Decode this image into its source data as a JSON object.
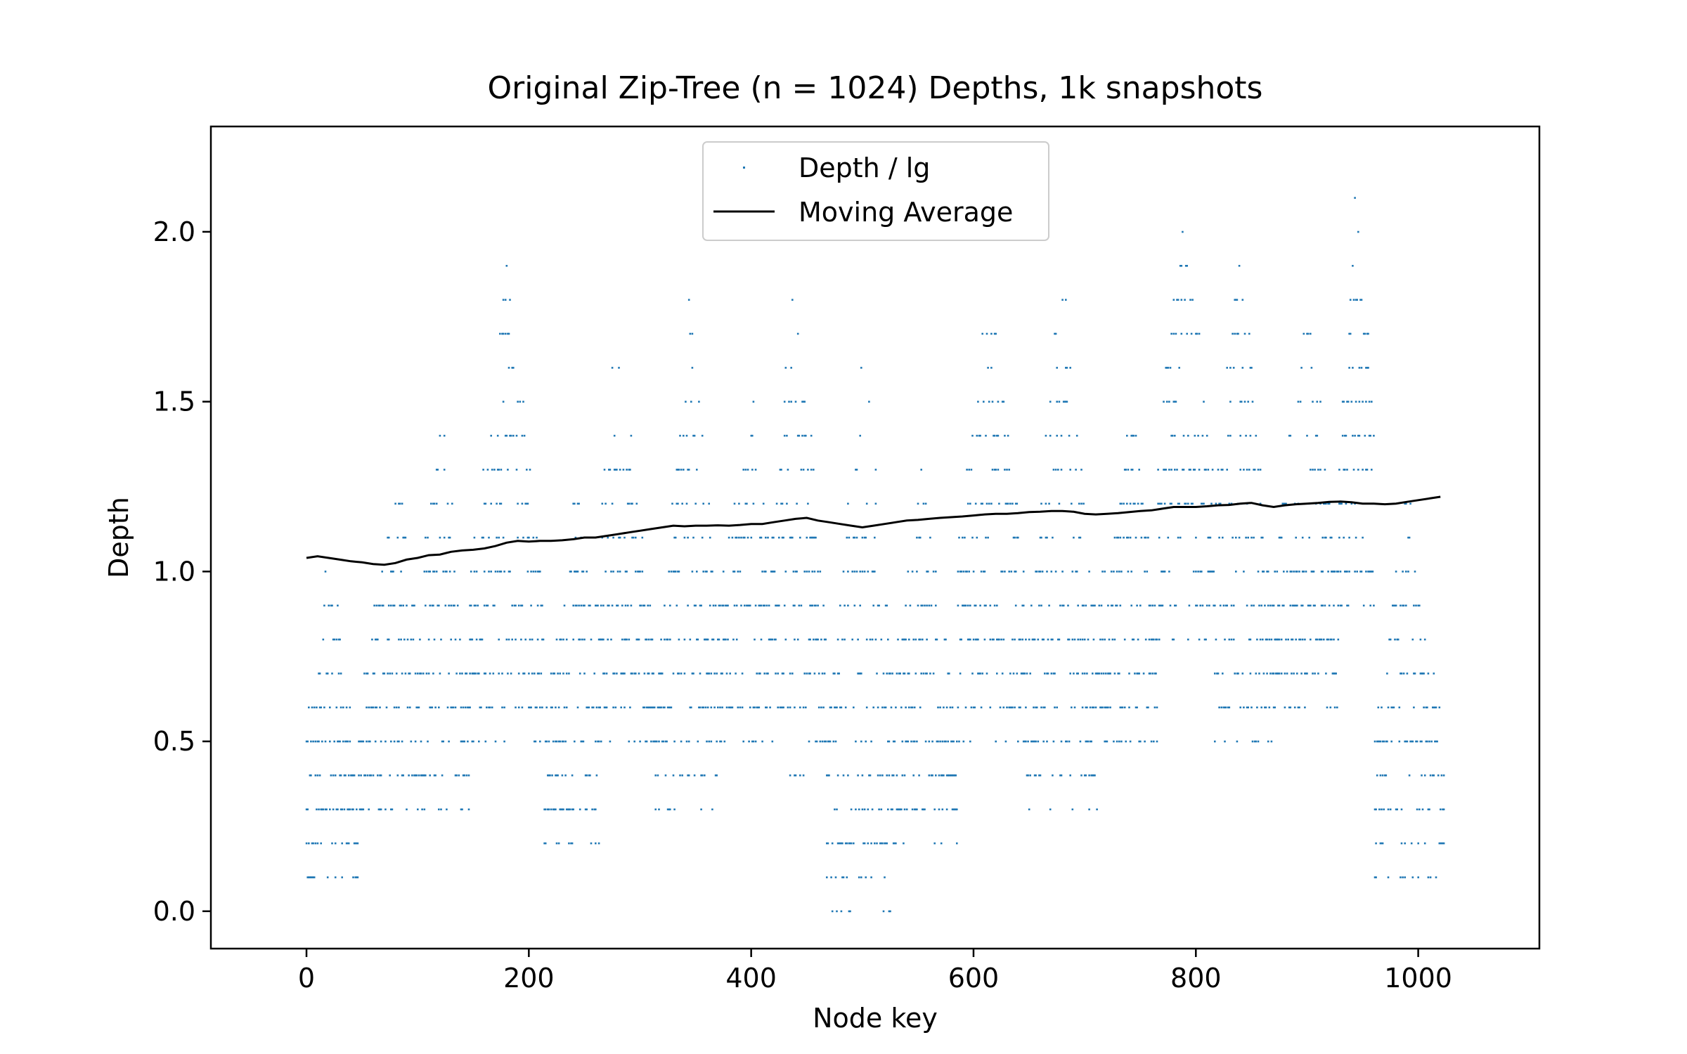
{
  "chart_data": {
    "type": "scatter",
    "title": "Original Zip-Tree (n = 1024) Depths, 1k snapshots",
    "xlabel": "Node key",
    "ylabel": "Depth",
    "xlim": [
      -86,
      1109
    ],
    "ylim": [
      -0.11,
      2.31
    ],
    "xticks": [
      0,
      200,
      400,
      600,
      800,
      1000
    ],
    "xtick_labels": [
      "0",
      "200",
      "400",
      "600",
      "800",
      "1000"
    ],
    "yticks": [
      0.0,
      0.5,
      1.0,
      1.5,
      2.0
    ],
    "ytick_labels": [
      "0.0",
      "0.5",
      "1.0",
      "1.5",
      "2.0"
    ],
    "grid": false,
    "legend_position": "upper center",
    "colors": {
      "points": "#1f77b4",
      "moving_average": "#000000"
    },
    "series": [
      {
        "name": "Depth / lg",
        "kind": "scatter",
        "depth_levels": [
          0.0,
          0.1,
          0.2,
          0.3,
          0.4,
          0.5,
          0.6,
          0.7,
          0.8,
          0.9,
          1.0,
          1.1,
          1.2,
          1.3,
          1.4,
          1.5,
          1.6,
          1.7,
          1.8,
          1.9,
          2.0,
          2.1,
          2.2
        ],
        "clusters": [
          {
            "center": 20,
            "spread": 22,
            "peak": 1.1,
            "low": 0.1
          },
          {
            "center": 80,
            "spread": 28,
            "peak": 1.3,
            "low": 0.3
          },
          {
            "center": 120,
            "spread": 24,
            "peak": 1.5,
            "low": 0.3
          },
          {
            "center": 180,
            "spread": 30,
            "peak": 2.0,
            "low": 0.5
          },
          {
            "center": 245,
            "spread": 28,
            "peak": 1.3,
            "low": 0.2
          },
          {
            "center": 280,
            "spread": 26,
            "peak": 1.7,
            "low": 0.5
          },
          {
            "center": 345,
            "spread": 24,
            "peak": 1.9,
            "low": 0.3
          },
          {
            "center": 400,
            "spread": 30,
            "peak": 1.5,
            "low": 0.5
          },
          {
            "center": 440,
            "spread": 26,
            "peak": 1.9,
            "low": 0.4
          },
          {
            "center": 500,
            "spread": 30,
            "peak": 1.7,
            "low": 0.0
          },
          {
            "center": 555,
            "spread": 30,
            "peak": 1.3,
            "low": 0.2
          },
          {
            "center": 615,
            "spread": 30,
            "peak": 1.9,
            "low": 0.5
          },
          {
            "center": 680,
            "spread": 30,
            "peak": 1.9,
            "low": 0.3
          },
          {
            "center": 740,
            "spread": 28,
            "peak": 1.5,
            "low": 0.5
          },
          {
            "center": 790,
            "spread": 26,
            "peak": 2.1,
            "low": 0.8
          },
          {
            "center": 840,
            "spread": 26,
            "peak": 2.0,
            "low": 0.5
          },
          {
            "center": 900,
            "spread": 28,
            "peak": 1.8,
            "low": 0.6
          },
          {
            "center": 945,
            "spread": 16,
            "peak": 2.2,
            "low": 0.9
          },
          {
            "center": 990,
            "spread": 30,
            "peak": 1.3,
            "low": 0.1
          }
        ],
        "key_range": [
          0,
          1023
        ]
      },
      {
        "name": "Moving Average",
        "kind": "line",
        "x": [
          0,
          10,
          20,
          30,
          40,
          50,
          60,
          70,
          80,
          90,
          100,
          110,
          120,
          130,
          140,
          150,
          160,
          170,
          180,
          190,
          200,
          210,
          220,
          230,
          240,
          250,
          260,
          270,
          280,
          290,
          300,
          310,
          320,
          330,
          340,
          350,
          360,
          370,
          380,
          390,
          400,
          410,
          420,
          430,
          440,
          450,
          460,
          470,
          480,
          490,
          500,
          510,
          520,
          530,
          540,
          550,
          560,
          570,
          580,
          590,
          600,
          610,
          620,
          630,
          640,
          650,
          660,
          670,
          680,
          690,
          700,
          710,
          720,
          730,
          740,
          750,
          760,
          770,
          780,
          790,
          800,
          810,
          820,
          830,
          840,
          850,
          860,
          870,
          880,
          890,
          900,
          910,
          920,
          930,
          940,
          950,
          960,
          970,
          980,
          990,
          1000,
          1010,
          1020
        ],
        "y": [
          1.04,
          1.045,
          1.04,
          1.035,
          1.03,
          1.027,
          1.022,
          1.02,
          1.025,
          1.035,
          1.04,
          1.048,
          1.05,
          1.058,
          1.062,
          1.064,
          1.068,
          1.075,
          1.085,
          1.09,
          1.088,
          1.09,
          1.09,
          1.092,
          1.095,
          1.1,
          1.1,
          1.105,
          1.11,
          1.115,
          1.12,
          1.125,
          1.13,
          1.135,
          1.133,
          1.135,
          1.135,
          1.136,
          1.135,
          1.137,
          1.14,
          1.14,
          1.145,
          1.15,
          1.155,
          1.158,
          1.15,
          1.145,
          1.14,
          1.135,
          1.13,
          1.135,
          1.14,
          1.145,
          1.15,
          1.152,
          1.155,
          1.158,
          1.16,
          1.162,
          1.165,
          1.168,
          1.17,
          1.17,
          1.172,
          1.175,
          1.176,
          1.178,
          1.178,
          1.176,
          1.17,
          1.168,
          1.17,
          1.172,
          1.175,
          1.178,
          1.18,
          1.185,
          1.19,
          1.19,
          1.19,
          1.192,
          1.195,
          1.196,
          1.2,
          1.202,
          1.195,
          1.19,
          1.195,
          1.198,
          1.2,
          1.202,
          1.205,
          1.206,
          1.204,
          1.2,
          1.2,
          1.198,
          1.2,
          1.205,
          1.21,
          1.215,
          1.22
        ]
      }
    ]
  }
}
